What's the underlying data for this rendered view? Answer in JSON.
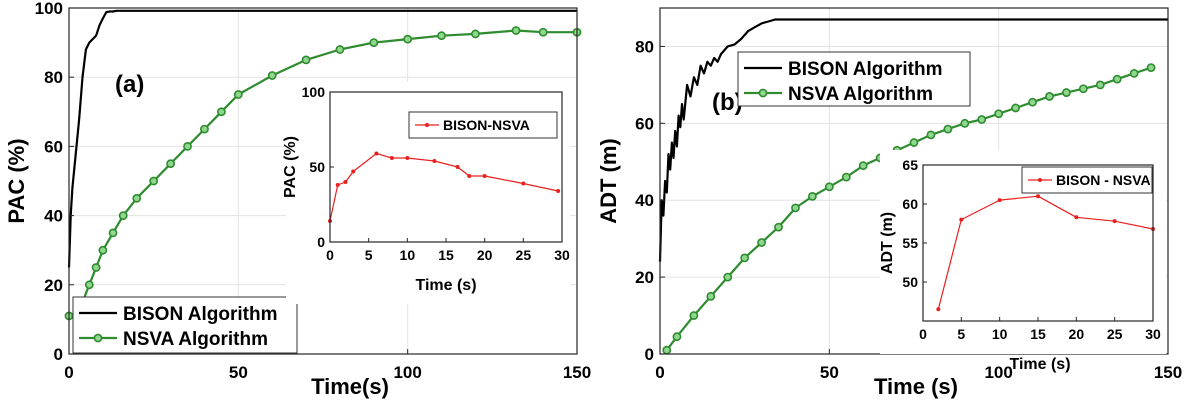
{
  "chart_data": [
    {
      "type": "line",
      "panel_label": "(a)",
      "xlabel": "Time(s)",
      "ylabel": "PAC (%)",
      "xlim": [
        0,
        150
      ],
      "ylim": [
        0,
        100
      ],
      "xticks": [
        0,
        50,
        100,
        150
      ],
      "yticks": [
        0,
        20,
        40,
        60,
        80,
        100
      ],
      "grid": true,
      "legend_position": "bottom-left",
      "series": [
        {
          "name": "BISON Algorithm",
          "color": "#000000",
          "marker": "none",
          "x": [
            0,
            0.5,
            1,
            1.5,
            2,
            3,
            4,
            5,
            6,
            7,
            8,
            9,
            10,
            11,
            12,
            13,
            14,
            15,
            20,
            30,
            50,
            100,
            150
          ],
          "y": [
            25,
            40,
            48,
            53,
            58,
            68,
            80,
            88,
            90,
            91,
            92,
            95,
            97,
            98.8,
            99,
            99,
            99.2,
            99.2,
            99.2,
            99.2,
            99.2,
            99.2,
            99.2
          ]
        },
        {
          "name": "NSVA Algorithm",
          "color": "#2e8b2e",
          "marker": "circle",
          "x": [
            0,
            2,
            4,
            6,
            8,
            10,
            13,
            16,
            20,
            25,
            30,
            35,
            40,
            45,
            50,
            60,
            70,
            80,
            90,
            100,
            110,
            120,
            132,
            140,
            150
          ],
          "y": [
            11,
            11,
            15,
            20,
            25,
            30,
            35,
            40,
            45,
            50,
            55,
            60,
            65,
            70,
            75,
            80.5,
            85,
            88,
            90,
            91,
            92,
            92.5,
            93.5,
            93,
            93
          ]
        }
      ],
      "inset": {
        "type": "line",
        "xlabel": "Time (s)",
        "ylabel": "PAC (%)",
        "xlim": [
          0,
          30
        ],
        "ylim": [
          0,
          100
        ],
        "xticks": [
          0,
          5,
          10,
          15,
          20,
          25,
          30
        ],
        "yticks": [
          0,
          50,
          100
        ],
        "legend_position": "top-right",
        "series": [
          {
            "name": "BISON-NSVA",
            "color": "#e8201e",
            "marker": "dot",
            "x": [
              0,
              1,
              2,
              3,
              6,
              8,
              10,
              13.5,
              16.5,
              18,
              20,
              25,
              29.5
            ],
            "y": [
              14,
              38,
              40,
              47,
              59,
              56,
              56,
              54,
              50,
              44,
              44,
              39,
              34
            ]
          }
        ]
      }
    },
    {
      "type": "line",
      "panel_label": "(b)",
      "xlabel": "Time (s)",
      "ylabel": "ADT (m)",
      "xlim": [
        0,
        150
      ],
      "ylim": [
        0,
        90
      ],
      "xticks": [
        0,
        50,
        100,
        150
      ],
      "yticks": [
        0,
        20,
        40,
        60,
        80
      ],
      "grid": true,
      "legend_position": "top-right",
      "series": [
        {
          "name": "BISON Algorithm",
          "color": "#000000",
          "marker": "none",
          "x": [
            0,
            0.5,
            1,
            1.5,
            2,
            2.5,
            3,
            3.5,
            4,
            4.5,
            5,
            5.5,
            6,
            6.5,
            7,
            8,
            9,
            10,
            11,
            12,
            13,
            14,
            15,
            16,
            17,
            18,
            20,
            22,
            24,
            26,
            28,
            30,
            32,
            34,
            36,
            40,
            60,
            100,
            150
          ],
          "y": [
            24,
            40,
            36,
            45,
            42,
            52,
            48,
            55,
            51,
            58,
            54,
            62,
            59,
            65,
            61,
            70,
            67,
            72,
            70,
            75,
            73,
            76,
            75,
            77,
            76,
            78,
            80,
            80.5,
            82,
            84,
            85,
            86,
            86.5,
            87,
            87,
            87,
            87,
            87,
            87
          ]
        },
        {
          "name": "NSVA Algorithm",
          "color": "#2e8b2e",
          "marker": "circle",
          "x": [
            2,
            5,
            10,
            15,
            20,
            25,
            30,
            35,
            40,
            45,
            50,
            55,
            60,
            65,
            70,
            75,
            80,
            85,
            90,
            95,
            100,
            105,
            110,
            115,
            120,
            125,
            130,
            135,
            140,
            145
          ],
          "y": [
            1,
            4.5,
            10,
            15,
            20,
            25,
            29,
            33,
            38,
            41,
            43.5,
            46,
            49,
            51,
            53,
            55,
            57,
            58.5,
            60,
            61,
            62.5,
            64,
            65.5,
            67,
            68,
            69,
            70,
            71.5,
            73,
            74.5
          ]
        }
      ],
      "inset": {
        "type": "line",
        "xlabel": "Time (s)",
        "ylabel": "ADT (m)",
        "xlim": [
          0,
          30
        ],
        "ylim": [
          45,
          65
        ],
        "xticks": [
          0,
          5,
          10,
          15,
          20,
          25,
          30
        ],
        "yticks": [
          50,
          55,
          60,
          65
        ],
        "legend_position": "top-right",
        "series": [
          {
            "name": "BISON - NSVA",
            "color": "#e8201e",
            "marker": "dot",
            "x": [
              2,
              5,
              10,
              15,
              20,
              25,
              30
            ],
            "y": [
              46.5,
              58,
              60.5,
              61,
              58.3,
              57.8,
              56.8
            ]
          }
        ]
      }
    }
  ]
}
